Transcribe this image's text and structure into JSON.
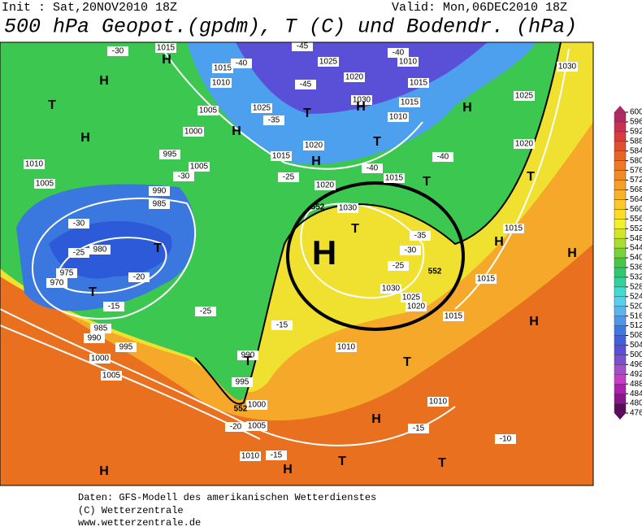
{
  "header": {
    "init": "Init : Sat,20NOV2010 18Z",
    "valid": "Valid: Mon,06DEC2010 18Z",
    "title": "500 hPa Geopot.(gpdm), T (C) und Bodendr. (hPa)"
  },
  "footer": [
    "Daten: GFS-Modell des amerikanischen Wetterdienstes",
    "(C) Wetterzentrale",
    "www.wetterzentrale.de"
  ],
  "colorbar": {
    "ticks": [
      476,
      480,
      484,
      488,
      492,
      496,
      500,
      504,
      508,
      512,
      516,
      520,
      524,
      528,
      532,
      536,
      540,
      544,
      548,
      552,
      556,
      560,
      564,
      568,
      572,
      576,
      580,
      584,
      588,
      592,
      596,
      600
    ],
    "colors": [
      "#5a0a5a",
      "#8a148a",
      "#b01eb0",
      "#c83cc8",
      "#a050c8",
      "#7a50d0",
      "#5a50d8",
      "#4060e0",
      "#3c78e6",
      "#4c96ee",
      "#5ab4f2",
      "#50d2f0",
      "#40dcd0",
      "#30d2a0",
      "#30c870",
      "#46c846",
      "#78d23c",
      "#aadc32",
      "#d2e628",
      "#f0f02c",
      "#fadc28",
      "#fac828",
      "#f8b428",
      "#f4a028",
      "#f08c28",
      "#ec7828",
      "#e66428",
      "#e05030",
      "#d83c3c",
      "#c83250",
      "#b02864"
    ]
  },
  "map": {
    "pressure_labels": [
      "1015",
      "1025",
      "1010",
      "1030",
      "1015",
      "1010",
      "1020",
      "1015",
      "1005",
      "1025",
      "1030",
      "1015",
      "1025",
      "1000",
      "1010",
      "1020",
      "1020",
      "995",
      "1015",
      "1005",
      "1015",
      "1010",
      "1005",
      "1020",
      "990",
      "985",
      "1030",
      "1015",
      "980",
      "975",
      "970",
      "1030",
      "1025",
      "1020",
      "1015",
      "1015",
      "985",
      "990",
      "995",
      "1000",
      "1005",
      "1010",
      "990",
      "995",
      "1000",
      "1005",
      "1010",
      "1010"
    ],
    "temperature_labels": [
      "-30",
      "-40",
      "-45",
      "-40",
      "-45",
      "-35",
      "-30",
      "-25",
      "-40",
      "-40",
      "-30",
      "-25",
      "-20",
      "-15",
      "-35",
      "-30",
      "-25",
      "-25",
      "-15",
      "-20",
      "-15",
      "-15",
      "-10"
    ],
    "highs_lows": [
      "H",
      "H",
      "T",
      "H",
      "T",
      "H",
      "H",
      "T",
      "H",
      "H",
      "T",
      "T",
      "T",
      "T",
      "T",
      "H",
      "H",
      "H",
      "T",
      "T",
      "H",
      "H",
      "T",
      "T",
      "H"
    ],
    "big_high": "H",
    "height_labels": [
      "552",
      "552",
      "552"
    ]
  }
}
